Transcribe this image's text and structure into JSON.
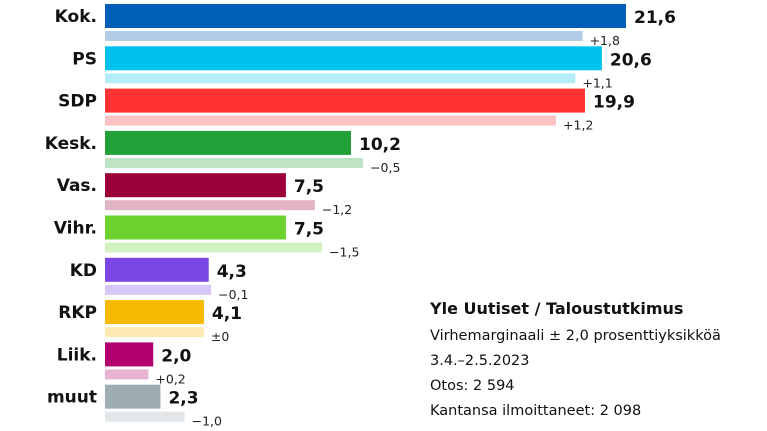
{
  "chart_data": {
    "type": "bar",
    "orientation": "horizontal",
    "categories": [
      "Kok.",
      "PS",
      "SDP",
      "Kesk.",
      "Vas.",
      "Vihr.",
      "KD",
      "RKP",
      "Liik.",
      "muut"
    ],
    "values": [
      21.6,
      20.6,
      19.9,
      10.2,
      7.5,
      7.5,
      4.3,
      4.1,
      2.0,
      2.3
    ],
    "value_labels": [
      "21,6",
      "20,6",
      "19,9",
      "10,2",
      "7,5",
      "7,5",
      "4,3",
      "4,1",
      "2,0",
      "2,3"
    ],
    "changes": [
      1.8,
      1.1,
      1.2,
      -0.5,
      -1.2,
      -1.5,
      -0.1,
      0.0,
      0.2,
      -1.0
    ],
    "change_labels": [
      "+1,8",
      "+1,1",
      "+1,2",
      "−0,5",
      "−1,2",
      "−1,5",
      "−0,1",
      "±0",
      "+0,2",
      "−1,0"
    ],
    "colors": [
      "#005EB8",
      "#00C2EE",
      "#FF3333",
      "#22A03A",
      "#9B0039",
      "#6BD12D",
      "#7A47E6",
      "#F7B900",
      "#B2006E",
      "#9EADB4"
    ],
    "previous_colors": [
      "#B3CDE9",
      "#B3EDFA",
      "#FFC2C2",
      "#BDE3C4",
      "#E1B3C5",
      "#D3F1C0",
      "#D7C8F7",
      "#FDEAB3",
      "#E8B3D3",
      "#E2E6E8"
    ],
    "xlim": [
      0,
      22
    ],
    "grid": false
  },
  "source": {
    "title": "Yle Uutiset / Taloustutkimus",
    "lines": [
      "Virhemarginaali ± 2,0 prosenttiyksikköä",
      "3.4.–2.5.2023",
      "Otos: 2 594",
      "Kantansa ilmoittaneet: 2 098"
    ]
  }
}
